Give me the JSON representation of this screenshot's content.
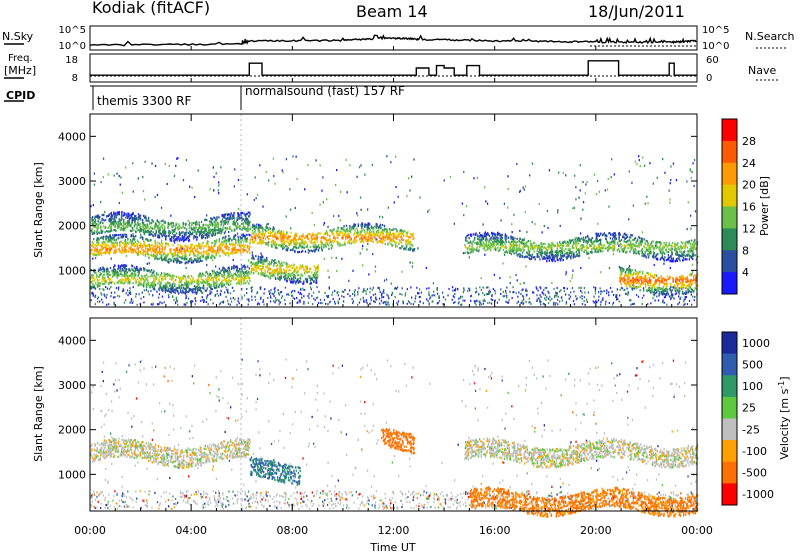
{
  "header": {
    "station": "Kodiak (fitACF)",
    "beam": "Beam 14",
    "date": "18/Jun/2011"
  },
  "panels": {
    "noise": {
      "left_label": "N.Sky",
      "right_label": "N.Search",
      "left_ticks": [
        "10^5",
        "10^0"
      ],
      "right_ticks": [
        "10^5",
        "10^0"
      ]
    },
    "freq": {
      "left_label_1": "Freq.",
      "left_label_2": "[MHz]",
      "right_label": "Nave",
      "left_ticks": [
        "18",
        "8"
      ],
      "right_ticks": [
        "60",
        "0"
      ]
    },
    "cpid": {
      "label": "CPID",
      "segments": [
        "themis 3300 RF",
        "normalsound (fast) 157 RF"
      ]
    }
  },
  "axes": {
    "x_label": "Time UT",
    "x_ticks": [
      "00:00",
      "04:00",
      "08:00",
      "12:00",
      "16:00",
      "20:00",
      "00:00"
    ],
    "y_label": "Slant Range [km]",
    "y_ticks": [
      "4000",
      "3000",
      "2000",
      "1000"
    ]
  },
  "colorbars": {
    "power": {
      "label": "Power [dB]",
      "ticks": [
        "28",
        "24",
        "20",
        "16",
        "12",
        "8",
        "4"
      ]
    },
    "velocity": {
      "label": "Velocity [m s",
      "label_sup": "-1",
      "label_end": "]",
      "ticks": [
        "1000",
        "500",
        "100",
        "25",
        "-25",
        "-100",
        "-500",
        "-1000"
      ]
    }
  },
  "colors": {
    "power_scale": [
      "#1a1aff",
      "#2a4fa0",
      "#2e8b57",
      "#6cc04a",
      "#e2c800",
      "#ff9a00",
      "#ff5a00",
      "#ff0000"
    ],
    "velocity_scale": [
      "#1a2a9a",
      "#2e5db0",
      "#2e9a6a",
      "#5ec83e",
      "#bfbfbf",
      "#ffa000",
      "#ff7000",
      "#ff0000"
    ],
    "ground_scatter": "#bfbfbf"
  },
  "chart_data": [
    {
      "type": "line",
      "title": "N.Sky / N.Search",
      "x_range_hours": [
        0,
        24
      ],
      "ylim_log10": [
        0,
        5
      ],
      "y_scale": "log",
      "series": [
        {
          "name": "N.Sky",
          "x": [
            0,
            6,
            6.3,
            10,
            12,
            13,
            16,
            19,
            21,
            23,
            24
          ],
          "values": [
            5,
            10,
            60,
            80,
            300,
            150,
            60,
            40,
            30,
            30,
            60
          ]
        }
      ]
    },
    {
      "type": "line",
      "title": "Freq. / Nave",
      "x_range_hours": [
        0,
        24
      ],
      "ylim": [
        8,
        18
      ],
      "series": [
        {
          "name": "Freq. [MHz]",
          "x": [
            0,
            6.3,
            6.3,
            6.8,
            6.8,
            12.9,
            12.9,
            13.4,
            13.4,
            13.7,
            13.7,
            14.0,
            14.0,
            14.4,
            14.4,
            14.9,
            14.9,
            15.4,
            15.4,
            19.7,
            19.7,
            20.9,
            20.9,
            22.9,
            22.9,
            23.1,
            23.1,
            24
          ],
          "values": [
            10,
            10,
            15,
            15,
            10,
            10,
            13,
            13,
            10,
            10,
            14,
            14,
            13,
            13,
            10,
            10,
            14,
            14,
            10,
            10,
            16,
            16,
            10,
            10,
            15,
            15,
            10,
            10
          ]
        }
      ]
    },
    {
      "type": "heatmap",
      "title": "Power",
      "x_range_hours": [
        0,
        24
      ],
      "ylim": [
        180,
        4500
      ],
      "colorbar_range_db": [
        0,
        32
      ],
      "features": [
        {
          "t_start": 0,
          "t_end": 6.3,
          "range_km": 1500,
          "value_db": 24
        },
        {
          "t_start": 0,
          "t_end": 6.3,
          "range_km": 2000,
          "value_db": 14
        },
        {
          "t_start": 0,
          "t_end": 6.3,
          "range_km": 820,
          "value_db": 18
        },
        {
          "t_start": 6.3,
          "t_end": 12.8,
          "range_km": 1750,
          "value_db": 24
        },
        {
          "t_start": 6.3,
          "t_end": 9.0,
          "range_km": 1050,
          "value_db": 20
        },
        {
          "t_start": 14.8,
          "t_end": 24,
          "range_km": 1550,
          "value_db": 16
        },
        {
          "t_start": 20.9,
          "t_end": 24,
          "range_km": 800,
          "value_db": 26
        }
      ]
    },
    {
      "type": "heatmap",
      "title": "Velocity",
      "x_range_hours": [
        0,
        24
      ],
      "ylim": [
        180,
        4500
      ],
      "colorbar_range_ms": [
        -1000,
        1000
      ],
      "features": [
        {
          "t_start": 0,
          "t_end": 6.3,
          "range_km": 1500,
          "value_ms": 0
        },
        {
          "t_start": 6.3,
          "t_end": 8.3,
          "range_km": 1100,
          "value_ms": 300
        },
        {
          "t_start": 11.5,
          "t_end": 12.8,
          "range_km": 1800,
          "value_ms": -150
        },
        {
          "t_start": 14.8,
          "t_end": 24,
          "range_km": 1500,
          "value_ms": 0
        },
        {
          "t_start": 15.0,
          "t_end": 24,
          "range_km": 400,
          "value_ms": -120
        }
      ]
    }
  ]
}
